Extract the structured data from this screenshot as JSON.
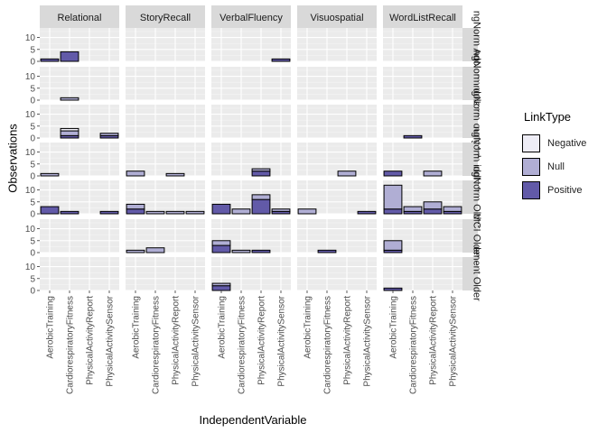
{
  "chart_data": {
    "type": "bar",
    "stacked": true,
    "xlabel": "IndependentVariable",
    "ylabel": "Observations",
    "ylim": [
      0,
      14
    ],
    "y_ticks": [
      0,
      5,
      10
    ],
    "grid": true,
    "legend": {
      "title": "LinkType",
      "position": "right",
      "entries": [
        {
          "name": "Negative",
          "color": "#eeedf6"
        },
        {
          "name": "Null",
          "color": "#b0aed4"
        },
        {
          "name": "Positive",
          "color": "#625aa8"
        }
      ]
    },
    "column_facets": [
      "Relational",
      "StoryRecall",
      "VerbalFluency",
      "Visuospatial",
      "WordListRecall"
    ],
    "row_facets": [
      "Adoles…ngNorm",
      "Adolesc…ngNorm",
      "YoungAd…ngNorm",
      "MiddleA…ngNorm",
      "Older…ngNorm",
      "Older…MCI",
      "Older…ement"
    ],
    "row_facet_labels": [
      "ngNorm Adoles",
      "ngNorm dolesc",
      "ngNorm oungAd",
      "ngNorm iddleA",
      "ngNorm Older",
      "MCI Older",
      "ement Older"
    ],
    "categories": [
      "AerobicTraining",
      "CardiorespiratoryFitness",
      "PhysicalActivityReport",
      "PhysicalActivitySensor"
    ],
    "bars": [
      {
        "row": 0,
        "col": 0,
        "cat": 0,
        "Negative": 0,
        "Null": 0,
        "Positive": 1
      },
      {
        "row": 0,
        "col": 0,
        "cat": 1,
        "Negative": 0,
        "Null": 0,
        "Positive": 4
      },
      {
        "row": 0,
        "col": 2,
        "cat": 3,
        "Negative": 0,
        "Null": 0,
        "Positive": 1
      },
      {
        "row": 1,
        "col": 0,
        "cat": 1,
        "Negative": 0,
        "Null": 1,
        "Positive": 0
      },
      {
        "row": 2,
        "col": 0,
        "cat": 1,
        "Negative": 1,
        "Null": 2,
        "Positive": 1
      },
      {
        "row": 2,
        "col": 0,
        "cat": 3,
        "Negative": 0,
        "Null": 1,
        "Positive": 1
      },
      {
        "row": 2,
        "col": 4,
        "cat": 1,
        "Negative": 0,
        "Null": 0,
        "Positive": 1
      },
      {
        "row": 3,
        "col": 0,
        "cat": 0,
        "Negative": 0,
        "Null": 1,
        "Positive": 0
      },
      {
        "row": 3,
        "col": 1,
        "cat": 0,
        "Negative": 0,
        "Null": 2,
        "Positive": 0
      },
      {
        "row": 3,
        "col": 1,
        "cat": 2,
        "Negative": 0,
        "Null": 1,
        "Positive": 0
      },
      {
        "row": 3,
        "col": 2,
        "cat": 2,
        "Negative": 0,
        "Null": 1,
        "Positive": 2
      },
      {
        "row": 3,
        "col": 3,
        "cat": 2,
        "Negative": 0,
        "Null": 2,
        "Positive": 0
      },
      {
        "row": 3,
        "col": 4,
        "cat": 0,
        "Negative": 0,
        "Null": 0,
        "Positive": 2
      },
      {
        "row": 3,
        "col": 4,
        "cat": 2,
        "Negative": 0,
        "Null": 2,
        "Positive": 0
      },
      {
        "row": 4,
        "col": 0,
        "cat": 0,
        "Negative": 0,
        "Null": 0,
        "Positive": 3
      },
      {
        "row": 4,
        "col": 0,
        "cat": 1,
        "Negative": 0,
        "Null": 0,
        "Positive": 1
      },
      {
        "row": 4,
        "col": 0,
        "cat": 3,
        "Negative": 0,
        "Null": 0,
        "Positive": 1
      },
      {
        "row": 4,
        "col": 1,
        "cat": 0,
        "Negative": 0,
        "Null": 2,
        "Positive": 2
      },
      {
        "row": 4,
        "col": 1,
        "cat": 1,
        "Negative": 0,
        "Null": 1,
        "Positive": 0
      },
      {
        "row": 4,
        "col": 1,
        "cat": 2,
        "Negative": 0,
        "Null": 1,
        "Positive": 0
      },
      {
        "row": 4,
        "col": 1,
        "cat": 3,
        "Negative": 0,
        "Null": 1,
        "Positive": 0
      },
      {
        "row": 4,
        "col": 2,
        "cat": 0,
        "Negative": 0,
        "Null": 0,
        "Positive": 4
      },
      {
        "row": 4,
        "col": 2,
        "cat": 1,
        "Negative": 0,
        "Null": 2,
        "Positive": 0
      },
      {
        "row": 4,
        "col": 2,
        "cat": 2,
        "Negative": 0,
        "Null": 2,
        "Positive": 6
      },
      {
        "row": 4,
        "col": 2,
        "cat": 3,
        "Negative": 0,
        "Null": 1,
        "Positive": 1
      },
      {
        "row": 4,
        "col": 3,
        "cat": 0,
        "Negative": 0,
        "Null": 2,
        "Positive": 0
      },
      {
        "row": 4,
        "col": 3,
        "cat": 3,
        "Negative": 0,
        "Null": 0,
        "Positive": 1
      },
      {
        "row": 4,
        "col": 4,
        "cat": 0,
        "Negative": 0,
        "Null": 10,
        "Positive": 2
      },
      {
        "row": 4,
        "col": 4,
        "cat": 1,
        "Negative": 0,
        "Null": 2,
        "Positive": 1
      },
      {
        "row": 4,
        "col": 4,
        "cat": 2,
        "Negative": 0,
        "Null": 3,
        "Positive": 2
      },
      {
        "row": 4,
        "col": 4,
        "cat": 3,
        "Negative": 0,
        "Null": 2,
        "Positive": 1
      },
      {
        "row": 5,
        "col": 1,
        "cat": 0,
        "Negative": 0,
        "Null": 1,
        "Positive": 0
      },
      {
        "row": 5,
        "col": 1,
        "cat": 1,
        "Negative": 0,
        "Null": 2,
        "Positive": 0
      },
      {
        "row": 5,
        "col": 2,
        "cat": 0,
        "Negative": 0,
        "Null": 2,
        "Positive": 3
      },
      {
        "row": 5,
        "col": 2,
        "cat": 1,
        "Negative": 0,
        "Null": 1,
        "Positive": 0
      },
      {
        "row": 5,
        "col": 2,
        "cat": 2,
        "Negative": 0,
        "Null": 0,
        "Positive": 1
      },
      {
        "row": 5,
        "col": 3,
        "cat": 1,
        "Negative": 0,
        "Null": 0,
        "Positive": 1
      },
      {
        "row": 5,
        "col": 4,
        "cat": 0,
        "Negative": 0,
        "Null": 4,
        "Positive": 1
      },
      {
        "row": 6,
        "col": 2,
        "cat": 0,
        "Negative": 0,
        "Null": 1,
        "Positive": 2
      },
      {
        "row": 6,
        "col": 4,
        "cat": 0,
        "Negative": 0,
        "Null": 0,
        "Positive": 1
      }
    ]
  }
}
